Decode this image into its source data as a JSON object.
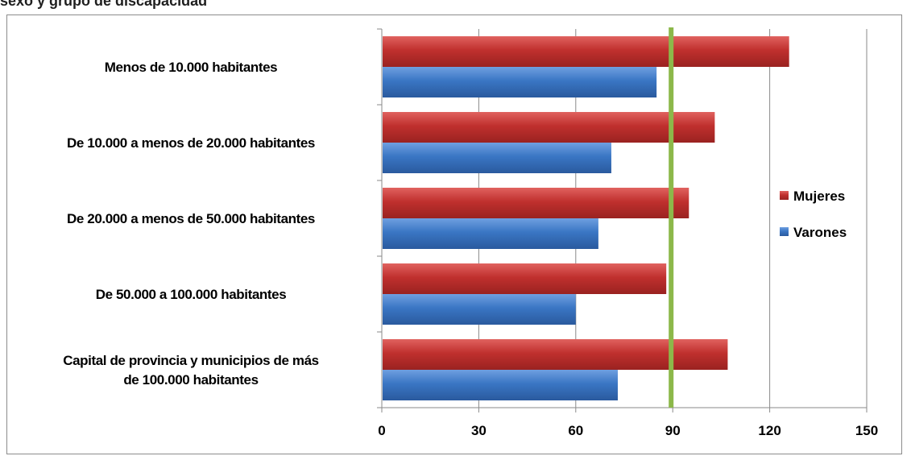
{
  "page": {
    "title": "sexo y grupo de discapacidad"
  },
  "chart_data": {
    "type": "bar",
    "orientation": "horizontal",
    "categories": [
      [
        "Menos de 10.000  habitantes"
      ],
      [
        "De 10.000  a menos de 20.000  habitantes"
      ],
      [
        "De 20.000  a menos de 50.000  habitantes"
      ],
      [
        "De 50.000  a 100.000  habitantes"
      ],
      [
        "Capital de provincia y municipios de más",
        "de 100.000  habitantes"
      ]
    ],
    "series": [
      {
        "name": "Mujeres",
        "color": "#c0302e",
        "values": [
          126,
          103,
          95,
          88,
          107
        ]
      },
      {
        "name": "Varones",
        "color": "#3a76c4",
        "values": [
          85,
          71,
          67,
          60,
          73
        ]
      }
    ],
    "xlim": [
      0,
      150
    ],
    "xticks": [
      0,
      30,
      60,
      90,
      120,
      150
    ],
    "reference_line": {
      "value": 89.5,
      "color": "#8cb84a"
    },
    "grid": true,
    "legend_position": "right"
  }
}
